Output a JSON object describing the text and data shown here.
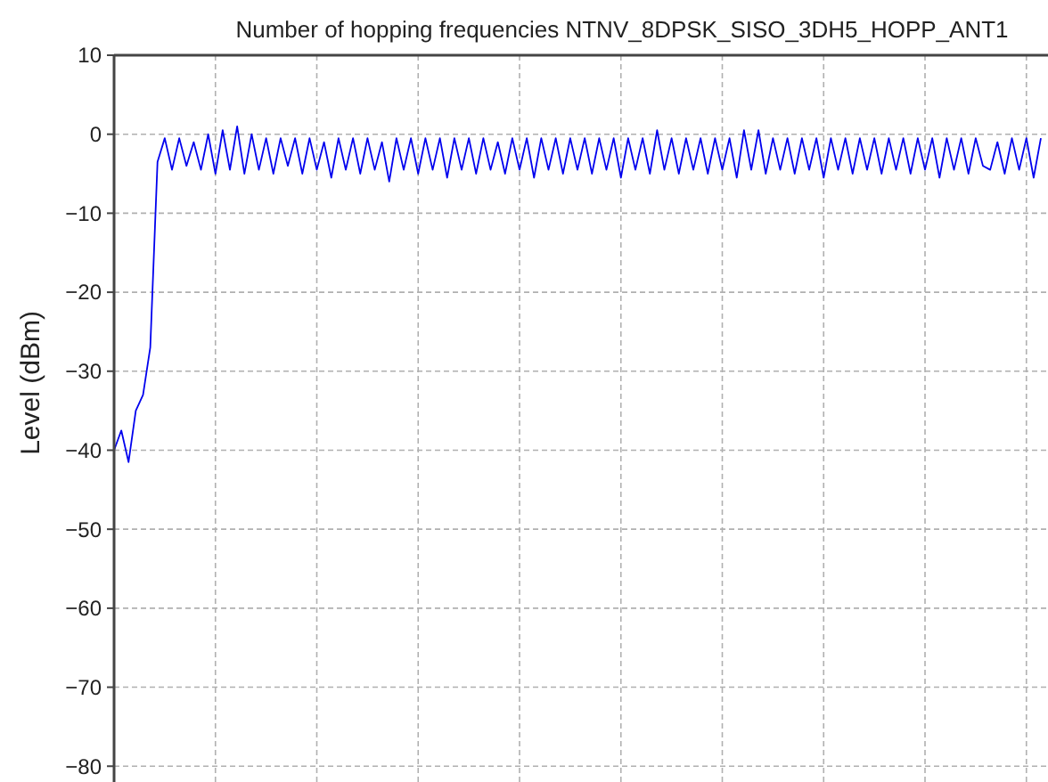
{
  "chart_data": {
    "type": "line",
    "title": "Number of hopping frequencies NTNV_8DPSK_SISO_3DH5_HOPP_ANT1",
    "ylabel": "Level (dBm)",
    "categories": [
      null,
      null,
      null,
      null,
      null,
      null,
      null,
      null,
      null,
      null,
      null,
      null,
      null,
      null,
      null,
      null,
      null,
      null,
      null,
      null,
      null,
      null,
      null,
      null,
      null,
      null,
      null,
      null,
      null,
      null,
      null,
      null,
      null,
      null,
      null,
      null,
      null,
      null,
      null,
      null,
      null,
      null,
      null,
      null,
      null,
      null,
      null,
      null,
      null,
      null,
      null,
      null,
      null,
      null,
      null,
      null,
      null,
      null,
      null,
      null,
      null,
      null,
      null,
      null,
      null,
      null,
      null,
      null,
      null,
      null,
      null,
      null,
      null,
      null,
      null,
      null,
      null,
      null,
      null,
      null,
      null,
      null,
      null,
      null,
      null,
      null,
      null,
      null,
      null,
      null,
      null,
      null,
      null,
      null,
      null,
      null,
      null,
      null,
      null,
      null,
      null,
      null,
      null,
      null,
      null,
      null,
      null,
      null,
      null,
      null,
      null,
      null,
      null,
      null,
      null,
      null,
      null,
      null,
      null,
      null,
      null,
      null,
      null,
      null,
      null,
      null,
      null,
      null,
      null
    ],
    "series": [
      {
        "color": "#0000ee",
        "values": [
          -40,
          -37.5,
          -41.5,
          -35,
          -33,
          -27,
          -3.5,
          -0.5,
          -4.5,
          -0.5,
          -4,
          -1,
          -4.5,
          0,
          -5,
          0.5,
          -4.5,
          1,
          -5,
          0,
          -4.5,
          -0.5,
          -5,
          -0.5,
          -4,
          -0.5,
          -5,
          -0.5,
          -4.5,
          -1,
          -5.5,
          -0.5,
          -4.5,
          -0.5,
          -5,
          -0.5,
          -4.5,
          -1,
          -6,
          -0.5,
          -4.5,
          -0.5,
          -5,
          -0.5,
          -4.5,
          -0.5,
          -5.5,
          -0.5,
          -4.5,
          -0.5,
          -5,
          -0.5,
          -4.5,
          -1,
          -5,
          -0.5,
          -4.5,
          -0.5,
          -5.5,
          -0.5,
          -4.5,
          -0.5,
          -5,
          -0.5,
          -4.5,
          -0.5,
          -5,
          -0.5,
          -4.5,
          -0.5,
          -5.5,
          -0.5,
          -4.5,
          -0.5,
          -5,
          0.5,
          -4.5,
          -0.5,
          -5,
          -0.5,
          -4.5,
          -0.5,
          -5,
          -0.5,
          -4.5,
          -0.5,
          -5.5,
          0.5,
          -4.5,
          0.5,
          -5,
          -0.5,
          -4.5,
          -0.5,
          -5,
          -0.5,
          -4.5,
          -0.5,
          -5.5,
          -0.5,
          -4.5,
          -0.5,
          -5,
          -0.5,
          -4.5,
          -0.5,
          -5,
          -0.5,
          -4.5,
          -0.5,
          -5,
          -0.5,
          -4.5,
          -0.5,
          -5.5,
          -0.5,
          -4.5,
          -0.5,
          -5,
          -0.5,
          -4,
          -4.5,
          -1,
          -5,
          -0.5,
          -4.5,
          -0.5,
          -5.5,
          -0.5
        ]
      }
    ],
    "ylim": [
      -82,
      10
    ],
    "yticks": [
      -80,
      -70,
      -60,
      -50,
      -40,
      -30,
      -20,
      -10,
      0,
      10
    ],
    "grid": true,
    "tick_labels": "y",
    "line_style": "solid",
    "marker": "none"
  }
}
